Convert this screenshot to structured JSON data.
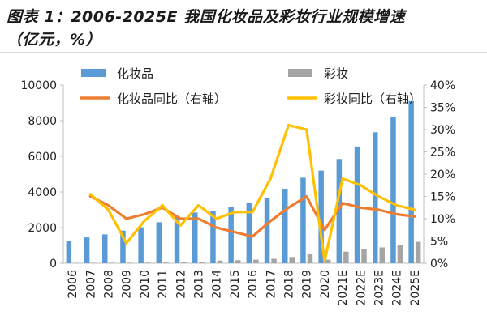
{
  "figure": {
    "title_line1": "图表 1：2006-2025E 我国化妆品及彩妆行业规模增速",
    "title_line2": "（亿元，%）"
  },
  "chart_data": {
    "type": "bar",
    "categories": [
      "2006",
      "2007",
      "2008",
      "2009",
      "2010",
      "2011",
      "2012",
      "2013",
      "2014",
      "2015",
      "2016",
      "2017",
      "2018",
      "2019",
      "2020",
      "2021E",
      "2022E",
      "2023E",
      "2024E",
      "2025E"
    ],
    "series": [
      {
        "name": "化妆品",
        "type": "bar",
        "axis": "left",
        "color": "#5b9bd5",
        "values": [
          1250,
          1450,
          1620,
          1830,
          2020,
          2300,
          2600,
          2850,
          2950,
          3150,
          3370,
          3680,
          4180,
          4800,
          5200,
          5850,
          6550,
          7350,
          8200,
          9100
        ]
      },
      {
        "name": "彩妆",
        "type": "bar",
        "axis": "left",
        "color": "#a5a5a5",
        "values": [
          20,
          25,
          30,
          30,
          35,
          40,
          45,
          55,
          150,
          170,
          200,
          250,
          350,
          550,
          200,
          650,
          790,
          890,
          1000,
          1200
        ]
      },
      {
        "name": "化妆品同比（右轴）",
        "type": "line",
        "axis": "right",
        "color": "#ed7d31",
        "values": [
          null,
          15.0,
          13.0,
          10.0,
          11.0,
          12.5,
          10.0,
          10.0,
          8.0,
          7.0,
          6.0,
          9.5,
          12.5,
          15.0,
          7.5,
          13.5,
          12.5,
          12.0,
          11.0,
          10.5
        ]
      },
      {
        "name": "彩妆同比（右轴）",
        "type": "line",
        "axis": "right",
        "color": "#ffc000",
        "values": [
          null,
          15.5,
          12.0,
          4.5,
          9.5,
          13.0,
          8.5,
          13.0,
          10.0,
          11.5,
          11.5,
          19.0,
          31.0,
          30.0,
          0.5,
          19.0,
          17.5,
          15.0,
          13.0,
          12.0
        ]
      }
    ],
    "ylim": [
      0,
      10000
    ],
    "yticks": [
      0,
      2000,
      4000,
      6000,
      8000,
      10000
    ],
    "y2lim": [
      0,
      40
    ],
    "y2ticks": [
      0,
      5,
      10,
      15,
      20,
      25,
      30,
      35,
      40
    ],
    "y2_suffix": "%",
    "legend_position": "top"
  }
}
